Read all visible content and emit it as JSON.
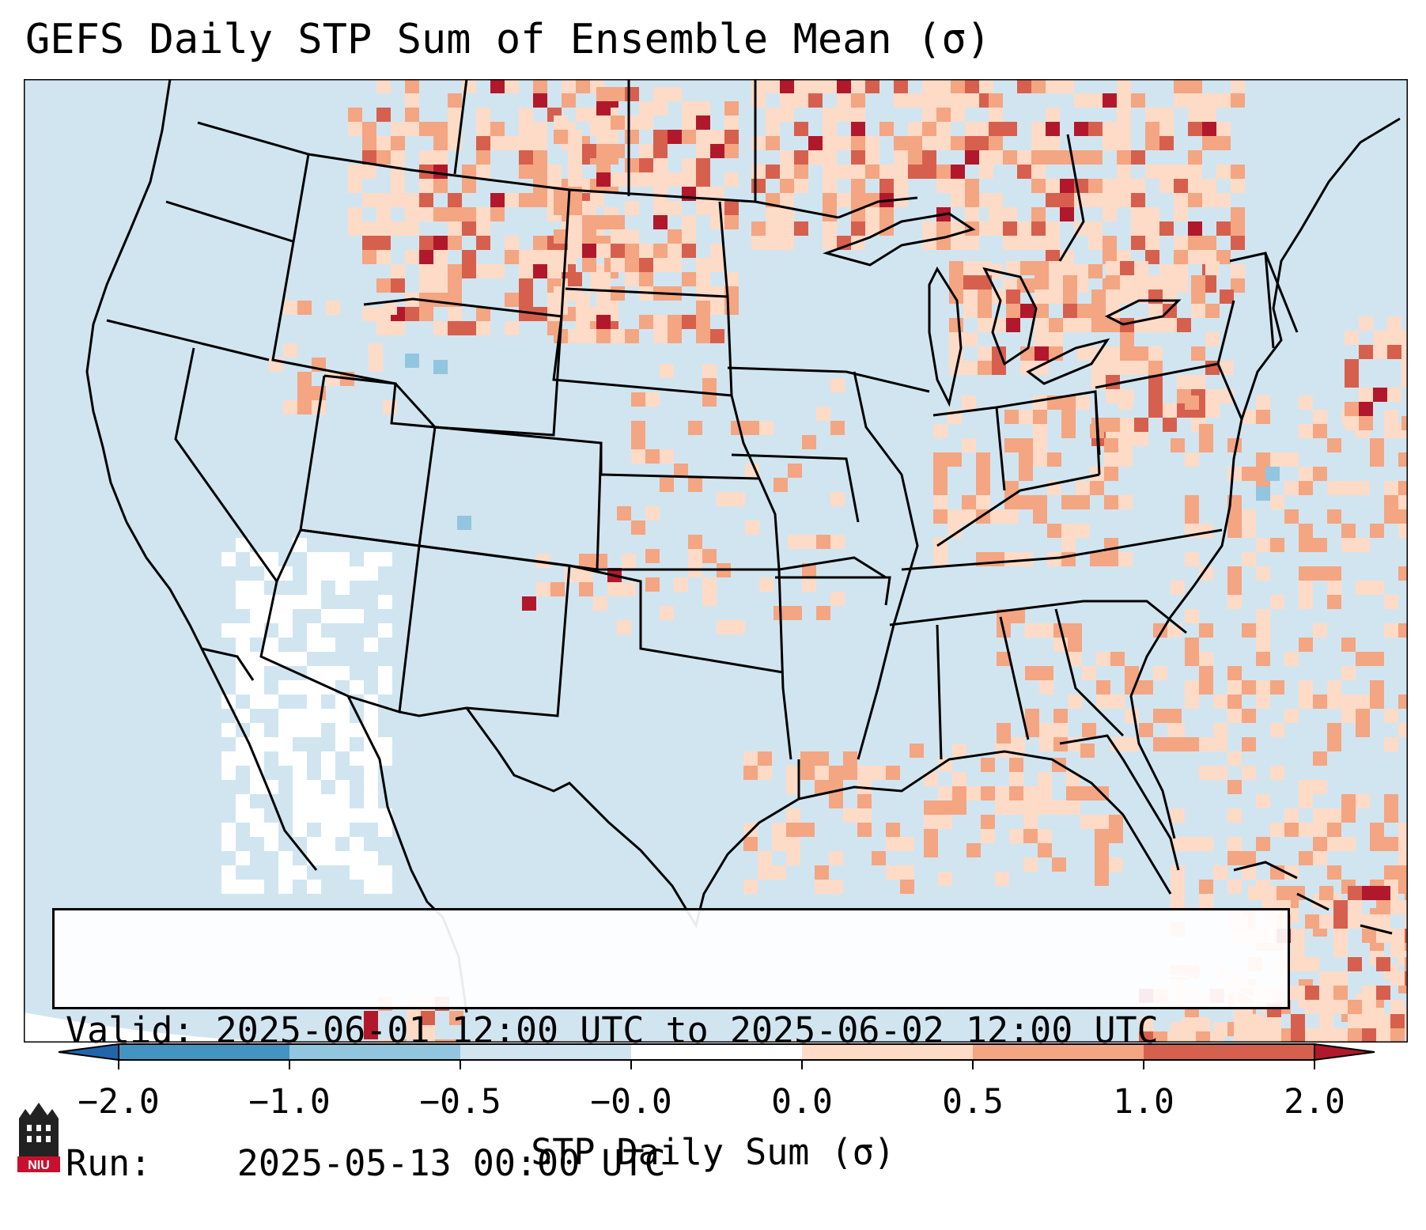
{
  "chart_data": {
    "type": "heatmap",
    "title": "GEFS Daily STP Sum of Ensemble Mean (σ)",
    "region": "Continental United States",
    "colorbar": {
      "label": "STP Daily Sum (σ)",
      "tick_labels": [
        "−2.0",
        "−1.0",
        "−0.5",
        "−0.0",
        "0.0",
        "0.5",
        "1.0",
        "2.0"
      ],
      "range": [
        -2.0,
        2.0
      ],
      "extend": "both"
    },
    "bins": [
      {
        "range": "< −2.0",
        "color": "#2166ac"
      },
      {
        "range": "−2.0 to −1.0",
        "color": "#4393c3"
      },
      {
        "range": "−1.0 to −0.5",
        "color": "#92c5de"
      },
      {
        "range": "−0.5 to −0.0",
        "color": "#d1e5f0"
      },
      {
        "range": "−0.0 to 0.0",
        "color": "#ffffff"
      },
      {
        "range": "0.0 to 0.5",
        "color": "#fddbc7"
      },
      {
        "range": "0.5 to 1.0",
        "color": "#f4a582"
      },
      {
        "range": "1.0 to 2.0",
        "color": "#d6604d"
      },
      {
        "range": "> 2.0",
        "color": "#b2182b"
      }
    ],
    "valid": "2025-06-01 12:00 UTC to 2025-06-02 12:00 UTC",
    "run": "2025-05-13 00:00 UTC"
  },
  "info": {
    "valid_label": "Valid:",
    "valid_value": "2025-06-01 12:00 UTC to 2025-06-02 12:00 UTC",
    "run_label": "Run:",
    "run_value": "2025-05-13 00:00 UTC"
  },
  "logo": {
    "text": "NIU"
  },
  "colors": {
    "background_field": "#d1e5f0",
    "border": "#000000"
  }
}
